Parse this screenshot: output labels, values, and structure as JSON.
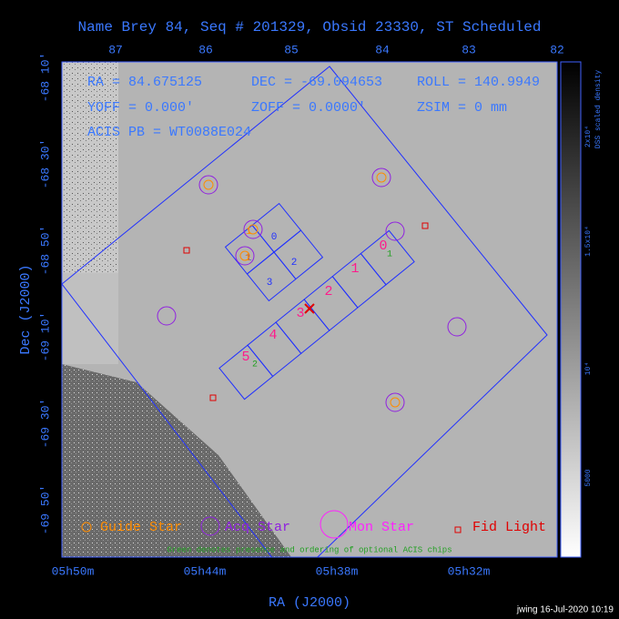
{
  "header": {
    "title": "Name Brey 84, Seq # 201329, Obsid 23330, ST Scheduled"
  },
  "axes": {
    "x_label": "RA (J2000)",
    "y_label": "Dec (J2000)",
    "top_ticks": [
      "87",
      "86",
      "85",
      "84",
      "83",
      "82"
    ],
    "bottom_ticks": [
      "05h50m",
      "05h44m",
      "05h38m",
      "05h32m"
    ],
    "left_ticks": [
      "-68 10'",
      "-68 30'",
      "-68 50'",
      "-69 10'",
      "-69 30'",
      "-69 50'"
    ]
  },
  "info": [
    "RA = 84.675125",
    "DEC = -69.094653",
    "ROLL = 140.9949",
    "YOFF =   0.000'",
    "ZOFF =  0.0000'",
    "ZSIM = 0 mm",
    "ACIS PB = WT0088E024"
  ],
  "acis_s": [
    "5",
    "4",
    "3",
    "2",
    "1",
    "0"
  ],
  "acis_s_optional": [
    "2",
    "1"
  ],
  "acis_i": [
    "0",
    "1",
    "2",
    "3"
  ],
  "guide_labels": [
    "1",
    "1"
  ],
  "legend": [
    "Guide Star",
    "Acq Star",
    "Mon Star",
    "Fid Light"
  ],
  "note": "Green denotes presence and ordering of optional ACIS chips",
  "colorbar": {
    "title": "DSS scaled density",
    "ticks": [
      "2x10⁴",
      "1.5x10⁴",
      "10⁴",
      "5000"
    ]
  },
  "footer": "jwing 16-Jul-2020 10:19"
}
